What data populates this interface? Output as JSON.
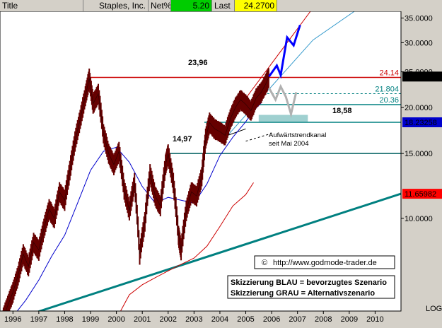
{
  "header": {
    "title_label": "Title",
    "name": "Staples, Inc.",
    "netpct_label": "Net%",
    "netpct_value": "5.20",
    "last_label": "Last",
    "last_value": "24.2700",
    "colors": {
      "netpct_bg": "#00cc00",
      "last_bg": "#ffff00"
    }
  },
  "chart_data": {
    "type": "line",
    "scale": "log",
    "ylim": [
      5.6,
      36.5
    ],
    "xlim": [
      1995.5,
      2011.0
    ],
    "y_ticks": [
      {
        "value": 35.0,
        "label": "35.0000"
      },
      {
        "value": 30.0,
        "label": "30.0000"
      },
      {
        "value": 25.0,
        "label": "25.0000"
      },
      {
        "value": 20.0,
        "label": "20.0000"
      },
      {
        "value": 15.0,
        "label": "15.0000"
      },
      {
        "value": 10.0,
        "label": "10.0000"
      }
    ],
    "x_ticks": [
      "1996",
      "1997",
      "1998",
      "1999",
      "2000",
      "2001",
      "2002",
      "2003",
      "2004",
      "2005",
      "2006",
      "2007",
      "2008",
      "2009",
      "2010"
    ],
    "scale_label": "LOG",
    "price_tags": [
      {
        "value": 24.27,
        "label": "24.2700",
        "bg": "#000000",
        "fg": "#ffffff"
      },
      {
        "value": 18.23258,
        "label": "18.23258",
        "bg": "#0000cc",
        "fg": "#ffffff"
      },
      {
        "value": 11.65982,
        "label": "11.65982",
        "bg": "#ff0000",
        "fg": "#ffffff"
      }
    ],
    "levels": [
      {
        "value": 24.14,
        "label": "24.14",
        "x_start": 1998.9,
        "color": "#cc0000",
        "style": "solid"
      },
      {
        "value": 21.804,
        "label": "21.804",
        "x_start": 2005.5,
        "color": "#008080",
        "style": "dashed"
      },
      {
        "value": 20.36,
        "label": "20.36",
        "x_start": 2005.5,
        "color": "#008080",
        "style": "solid"
      },
      {
        "value": 18.23,
        "label": "",
        "x_start": 2003.4,
        "color": "#008080",
        "style": "solid"
      },
      {
        "value": 15.0,
        "label": "",
        "x_start": 2002.0,
        "color": "#006060",
        "style": "solid"
      }
    ],
    "annotations": {
      "high_1999": "23,96",
      "low_2002": "14,97",
      "level_1858": "18,58",
      "channel_line1": "Aufwärtstrendkanal",
      "channel_line2": "seit Mai 2004",
      "website": "http://www.godmode-trader.de",
      "copyright_symbol": "©",
      "legend_blue": "Skizzierung BLAU = bevorzugtes Szenario",
      "legend_grey": "Skizzierung GRAU = Alternativszenario"
    },
    "price_series": [
      [
        1995.6,
        5.3
      ],
      [
        1995.8,
        5.8
      ],
      [
        1996.0,
        6.3
      ],
      [
        1996.2,
        7.0
      ],
      [
        1996.4,
        8.0
      ],
      [
        1996.6,
        7.4
      ],
      [
        1996.8,
        8.6
      ],
      [
        1997.0,
        8.2
      ],
      [
        1997.2,
        9.4
      ],
      [
        1997.4,
        10.6
      ],
      [
        1997.6,
        10.0
      ],
      [
        1997.8,
        11.8
      ],
      [
        1998.0,
        11.2
      ],
      [
        1998.2,
        13.5
      ],
      [
        1998.4,
        16.2
      ],
      [
        1998.6,
        18.6
      ],
      [
        1998.8,
        21.5
      ],
      [
        1998.95,
        23.96
      ],
      [
        1999.1,
        20.5
      ],
      [
        1999.3,
        21.8
      ],
      [
        1999.5,
        17.0
      ],
      [
        1999.7,
        15.0
      ],
      [
        1999.9,
        14.0
      ],
      [
        2000.1,
        15.2
      ],
      [
        2000.3,
        12.0
      ],
      [
        2000.5,
        10.5
      ],
      [
        2000.7,
        12.5
      ],
      [
        2000.9,
        8.0
      ],
      [
        2001.1,
        9.8
      ],
      [
        2001.3,
        13.2
      ],
      [
        2001.5,
        11.5
      ],
      [
        2001.7,
        10.8
      ],
      [
        2001.9,
        14.0
      ],
      [
        2002.0,
        14.97
      ],
      [
        2002.2,
        12.5
      ],
      [
        2002.4,
        9.0
      ],
      [
        2002.5,
        8.2
      ],
      [
        2002.7,
        10.5
      ],
      [
        2002.9,
        11.8
      ],
      [
        2003.1,
        11.5
      ],
      [
        2003.3,
        13.0
      ],
      [
        2003.45,
        16.5
      ],
      [
        2003.6,
        18.2
      ],
      [
        2003.8,
        17.5
      ],
      [
        2004.0,
        17.2
      ],
      [
        2004.2,
        16.8
      ],
      [
        2004.4,
        18.6
      ],
      [
        2004.6,
        20.0
      ],
      [
        2004.8,
        21.0
      ],
      [
        2005.0,
        20.4
      ],
      [
        2005.2,
        19.6
      ],
      [
        2005.4,
        21.2
      ],
      [
        2005.6,
        22.0
      ],
      [
        2005.8,
        23.4
      ],
      [
        2005.9,
        24.27
      ]
    ],
    "ma_short": [
      [
        1995.9,
        5.3
      ],
      [
        1996.5,
        6.0
      ],
      [
        1997.0,
        6.8
      ],
      [
        1997.5,
        7.9
      ],
      [
        1998.0,
        9.0
      ],
      [
        1998.5,
        11.0
      ],
      [
        1999.0,
        13.5
      ],
      [
        1999.5,
        15.2
      ],
      [
        2000.0,
        15.6
      ],
      [
        2000.5,
        14.2
      ],
      [
        2001.0,
        12.2
      ],
      [
        2001.5,
        11.0
      ],
      [
        2002.0,
        11.4
      ],
      [
        2002.5,
        11.2
      ],
      [
        2003.0,
        11.0
      ],
      [
        2003.5,
        12.4
      ],
      [
        2004.0,
        14.8
      ],
      [
        2004.5,
        16.6
      ],
      [
        2005.0,
        18.3
      ],
      [
        2005.3,
        19.6
      ],
      [
        2005.6,
        20.6
      ]
    ],
    "ma_long": [
      [
        2000.1,
        5.5
      ],
      [
        2000.5,
        6.2
      ],
      [
        2001.0,
        6.6
      ],
      [
        2001.5,
        6.9
      ],
      [
        2002.0,
        7.2
      ],
      [
        2002.5,
        7.5
      ],
      [
        2003.0,
        7.8
      ],
      [
        2003.5,
        8.4
      ],
      [
        2004.0,
        9.5
      ],
      [
        2004.5,
        10.8
      ],
      [
        2005.0,
        11.6
      ],
      [
        2005.3,
        12.5
      ]
    ],
    "trend_support": [
      [
        1996.0,
        5.3
      ],
      [
        2011.0,
        11.66
      ]
    ],
    "channel_upper": [
      [
        2004.4,
        18.6
      ],
      [
        2007.5,
        36.5
      ]
    ],
    "channel_lower": [
      [
        2004.2,
        16.5
      ],
      [
        2007.6,
        30.5
      ],
      [
        2009.2,
        36.5
      ]
    ],
    "channel_dashed_upper": [
      [
        2004.3,
        16.8
      ],
      [
        2005.0,
        17.5
      ]
    ],
    "channel_dashed_lower": [
      [
        2005.0,
        16.2
      ],
      [
        2006.0,
        17.0
      ]
    ],
    "scenario_blue": [
      [
        2005.9,
        24.27
      ],
      [
        2006.2,
        26.0
      ],
      [
        2006.35,
        24.5
      ],
      [
        2006.6,
        31.0
      ],
      [
        2006.85,
        29.5
      ],
      [
        2007.1,
        33.5
      ]
    ],
    "scenario_grey": [
      [
        2005.9,
        22.6
      ],
      [
        2006.15,
        21.0
      ],
      [
        2006.35,
        22.8
      ],
      [
        2006.55,
        21.4
      ],
      [
        2006.75,
        19.2
      ],
      [
        2006.95,
        22.0
      ]
    ],
    "support_zone": {
      "x0": 2005.5,
      "x1": 2007.4,
      "y0": 18.3,
      "y1": 19.1,
      "color": "#9fd0d0"
    }
  }
}
